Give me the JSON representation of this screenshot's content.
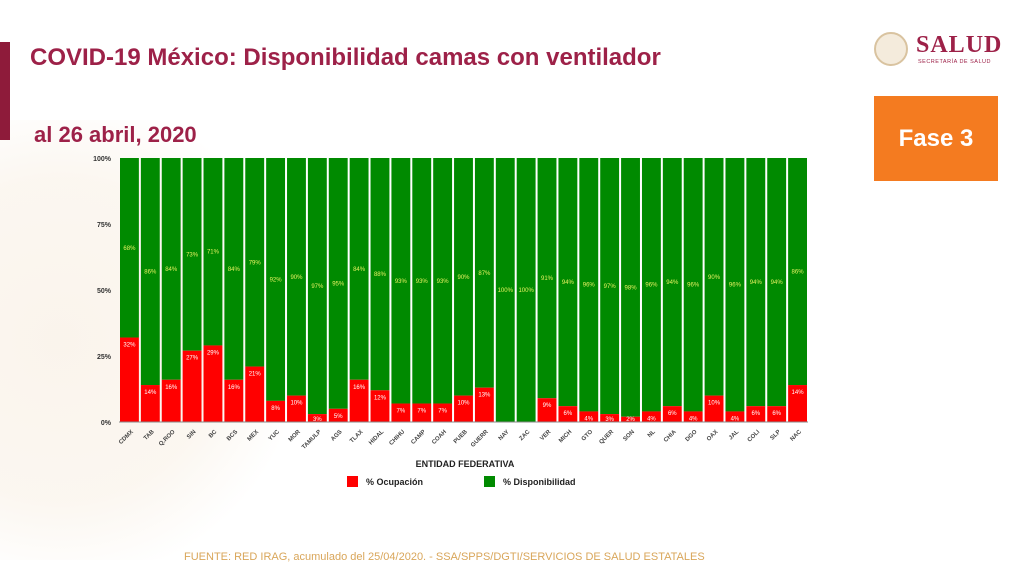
{
  "header": {
    "title": "COVID-19 México: Disponibilidad camas con ventilador",
    "subtitle": "al 26 abril, 2020",
    "logo_text": "SALUD",
    "logo_subtext": "SECRETARÍA DE SALUD",
    "phase_badge": "Fase 3"
  },
  "footer": {
    "source": "FUENTE: RED IRAG, acumulado del 25/04/2020. -  SSA/SPPS/DGTI/SERVICIOS DE SALUD ESTATALES"
  },
  "colors": {
    "ocupacion": "#ff0000",
    "disponibilidad": "#008a00",
    "title": "#9d2148",
    "phase": "#f47b20"
  },
  "chart_data": {
    "type": "bar",
    "stacked": true,
    "title": "",
    "xlabel": "ENTIDAD FEDERATIVA",
    "ylabel": "",
    "ylim": [
      0,
      100
    ],
    "yticks": [
      "0%",
      "25%",
      "50%",
      "75%",
      "100%"
    ],
    "categories": [
      "CDMX",
      "TAB",
      "Q.ROO",
      "SIN",
      "BC",
      "BCS",
      "MEX",
      "YUC",
      "MOR",
      "TAMULP",
      "AGS",
      "TLAX",
      "HIDAL",
      "CHIHU",
      "CAMP",
      "COAH",
      "PUEB",
      "GUERR",
      "NAY",
      "ZAC",
      "VER",
      "MICH",
      "GTO",
      "QUER",
      "SON",
      "NL",
      "CHIA",
      "DGO",
      "OAX",
      "JAL",
      "COLI",
      "SLP",
      "NAC"
    ],
    "series": [
      {
        "name": "% Ocupación",
        "color": "#ff0000",
        "values": [
          32,
          14,
          16,
          27,
          29,
          16,
          21,
          8,
          10,
          3,
          5,
          16,
          12,
          7,
          7,
          7,
          10,
          13,
          0,
          0,
          9,
          6,
          4,
          3,
          2,
          4,
          6,
          4,
          10,
          4,
          6,
          6,
          14
        ]
      },
      {
        "name": "% Disponibilidad",
        "color": "#008a00",
        "values": [
          68,
          86,
          84,
          73,
          71,
          84,
          79,
          92,
          90,
          97,
          95,
          84,
          88,
          93,
          93,
          93,
          90,
          87,
          100,
          100,
          91,
          94,
          96,
          97,
          98,
          96,
          94,
          96,
          90,
          96,
          94,
          94,
          86
        ]
      }
    ],
    "legend": "bottom"
  }
}
